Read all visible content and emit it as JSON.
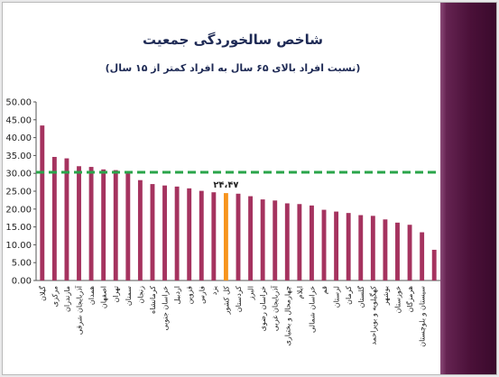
{
  "chart_data": {
    "type": "bar",
    "title": "شاخص سالخوردگی جمعیت",
    "subtitle": "(نسبت افراد بالای ۶۵ سال به افراد کمتر از ۱۵ سال)",
    "xlabel": "",
    "ylabel": "",
    "ylim": [
      0,
      50
    ],
    "ytick_step": 5,
    "categories": [
      "گیلان",
      "مرکزی",
      "مازندران",
      "آذربایجان شرقی",
      "همدان",
      "اصفهان",
      "تهران",
      "سمنان",
      "زنجان",
      "کرمانشاه",
      "خراسان جنوبی",
      "اردبیل",
      "قزوین",
      "فارس",
      "یزد",
      "کل کشور",
      "کردستان",
      "البرز",
      "خراسان رضوی",
      "آذربایجان غربی",
      "چهارمحال و بختیاری",
      "ایلام",
      "خراسان شمالی",
      "قم",
      "لرستان",
      "کرمان",
      "گلستان",
      "کهگیلویه و بویراحمد",
      "بوشهر",
      "خوزستان",
      "هرمزگان",
      "سیستان و بلوچستان"
    ],
    "values": [
      43.4,
      34.6,
      34.2,
      32.0,
      31.8,
      31.1,
      30.9,
      30.2,
      28.1,
      27.0,
      26.6,
      26.3,
      25.8,
      25.1,
      24.7,
      24.47,
      24.3,
      23.6,
      22.7,
      22.4,
      21.6,
      21.4,
      21.0,
      19.8,
      19.3,
      18.9,
      18.3,
      18.1,
      17.1,
      16.2,
      15.6,
      13.5
    ],
    "series": [
      {
        "name": "",
        "values": [
          43.4,
          34.6,
          34.2,
          32.0,
          31.8,
          31.1,
          30.9,
          30.2,
          28.1,
          27.0,
          26.6,
          26.3,
          25.8,
          25.1,
          24.7,
          24.47,
          24.3,
          23.6,
          22.7,
          22.4,
          21.6,
          21.4,
          21.0,
          19.8,
          19.3,
          18.9,
          18.3,
          18.1,
          17.1,
          16.2,
          15.6,
          13.5
        ]
      }
    ],
    "last_value_extra": 8.6,
    "highlight_category": "کل کشور",
    "highlight_label": "۲۴،۴۷",
    "reference_line": 30.3,
    "grid": false,
    "legend": "none",
    "colors": {
      "bar": "#a5335f",
      "highlight": "#f7941d",
      "reference": "#2aa54a",
      "axis": "#555555"
    }
  }
}
